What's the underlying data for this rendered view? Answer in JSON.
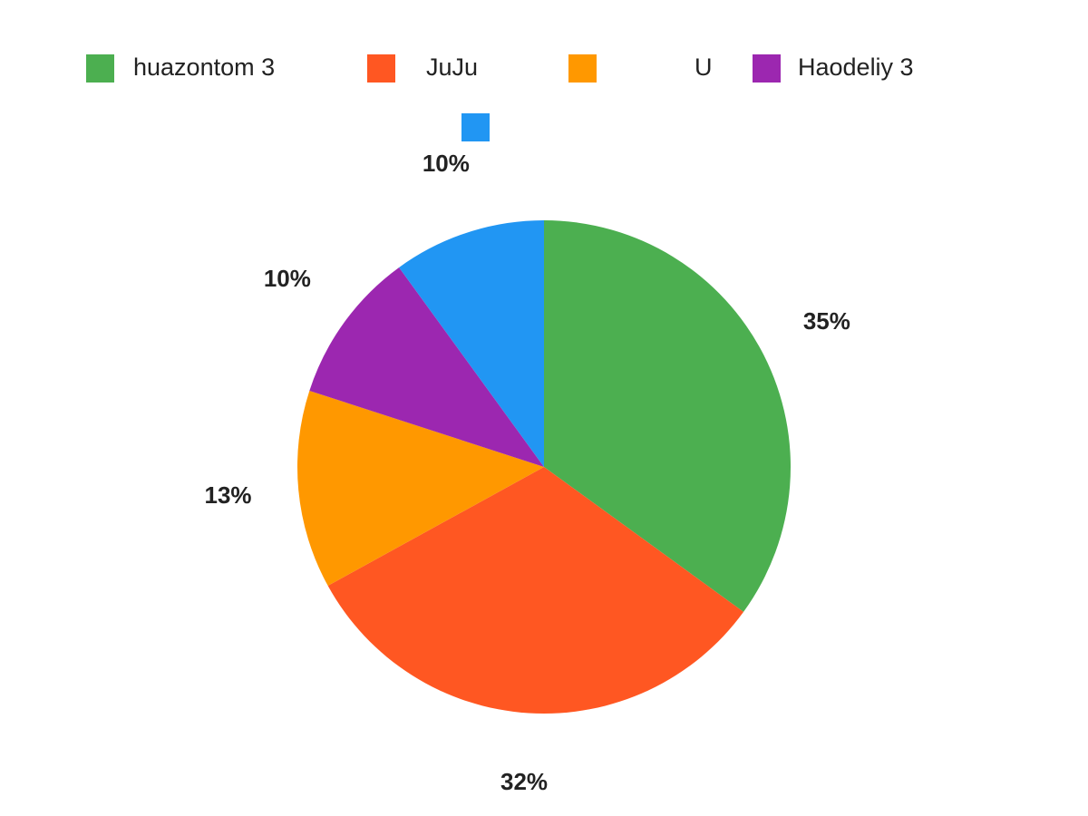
{
  "chart_data": {
    "type": "pie",
    "categories": [
      "huazontom 3",
      "JuJu",
      "U",
      "Haodeliy 3",
      null
    ],
    "values": [
      35,
      32,
      13,
      10,
      10
    ],
    "value_labels": [
      "35%",
      "32%",
      "13%",
      "10%",
      "10%"
    ],
    "colors": [
      "#4caf50",
      "#ff5722",
      "#ff9800",
      "#9c27b0",
      "#2196f3"
    ]
  }
}
